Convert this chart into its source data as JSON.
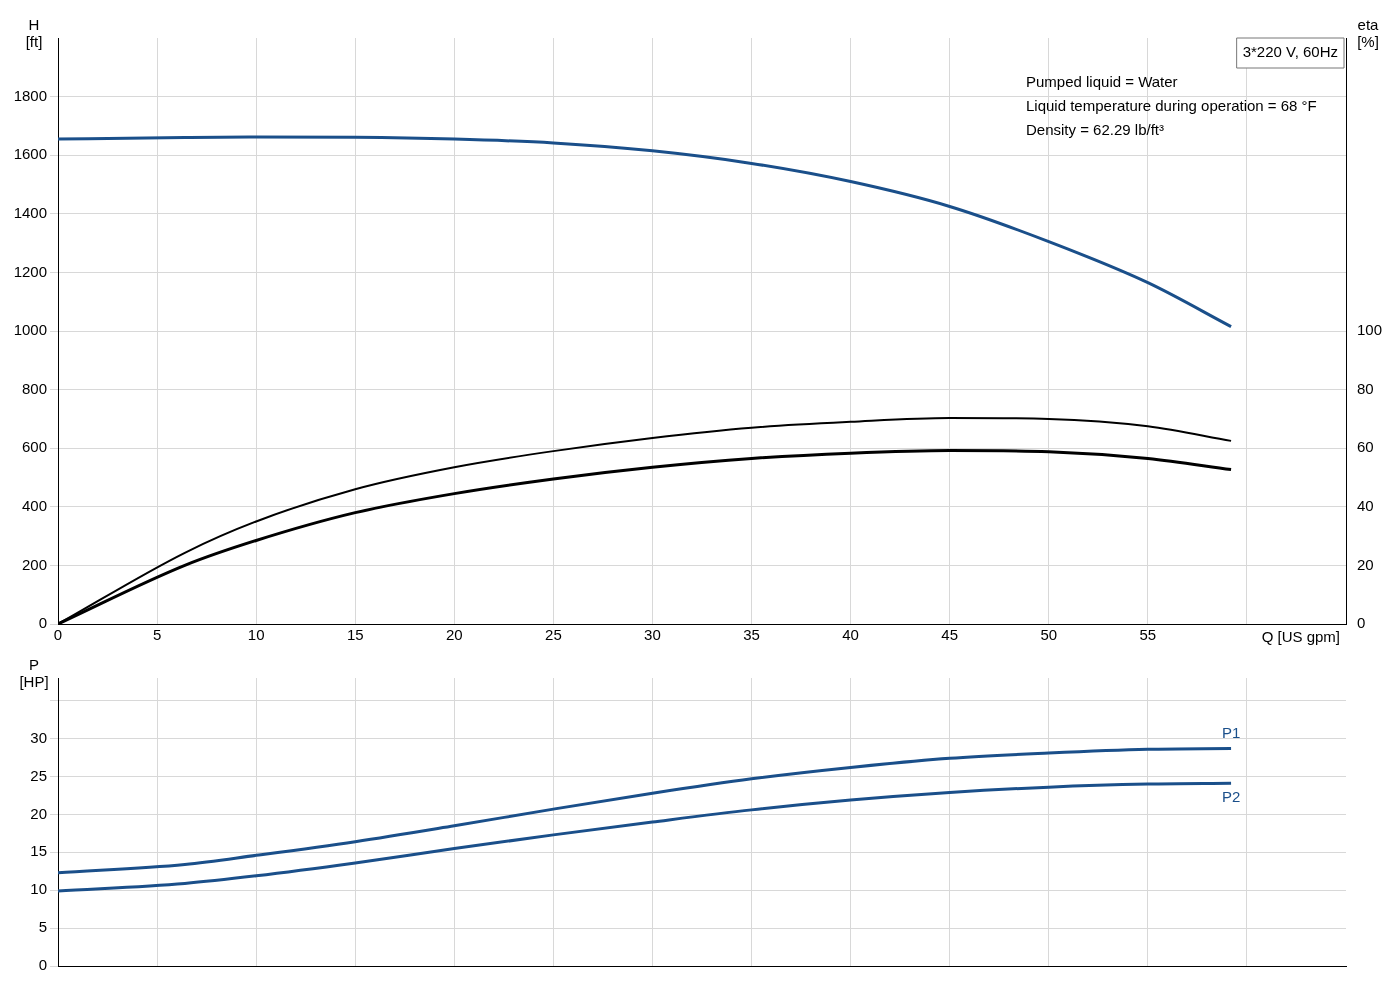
{
  "chart_data": [
    {
      "type": "line",
      "title": "3*220 V, 60Hz",
      "xlabel": "Q [US gpm]",
      "ylabel": "H [ft]",
      "y2label": "eta [%]",
      "annotations": [
        "Pumped liquid = Water",
        "Liquid temperature during operation = 68 °F",
        "Density = 62.29 lb/ft³"
      ],
      "x": [
        0,
        6.4,
        10,
        15,
        20,
        25,
        30,
        35,
        40,
        45,
        50,
        55,
        59.2
      ],
      "series": [
        {
          "color": "#1a4f8a",
          "values": [
            1655,
            1660,
            1662,
            1661,
            1655,
            1642,
            1615,
            1572,
            1510,
            1425,
            1305,
            1165,
            1015
          ]
        },
        {
          "color": "#000000",
          "axis": "y2",
          "values": [
            0,
            24.3,
            35,
            46,
            53.5,
            59,
            63.5,
            67,
            69,
            70.3,
            70,
            67.5,
            62.5
          ]
        },
        {
          "color": "#000000",
          "axis": "y2",
          "values": [
            0,
            20,
            28.5,
            38,
            44.5,
            49.5,
            53.5,
            56.5,
            58.3,
            59.2,
            58.8,
            56.5,
            52.7
          ]
        }
      ],
      "xlim": [
        0,
        65
      ],
      "xticks": [
        0,
        5,
        10,
        15,
        20,
        25,
        30,
        35,
        40,
        45,
        50,
        55,
        {
          "value": 60,
          "label": null
        }
      ],
      "ylim": [
        0,
        2000
      ],
      "yticks": [
        0,
        200,
        400,
        600,
        800,
        1000,
        1200,
        1400,
        1600,
        1800
      ],
      "y2lim": [
        0,
        200
      ],
      "y2ticks": [
        0,
        20,
        40,
        60,
        80,
        100
      ],
      "grid": true,
      "legend": false
    },
    {
      "type": "line",
      "ylabel": "P [HP]",
      "x": [
        0,
        6.4,
        10,
        15,
        20,
        25,
        30,
        35,
        40,
        45,
        50,
        55,
        59.2
      ],
      "series": [
        {
          "name": "P1",
          "color": "#1a4f8a",
          "values": [
            12.3,
            13.4,
            14.6,
            16.4,
            18.5,
            20.7,
            22.8,
            24.7,
            26.2,
            27.4,
            28.1,
            28.6,
            28.7
          ]
        },
        {
          "name": "P2",
          "color": "#1a4f8a",
          "values": [
            9.9,
            10.9,
            11.9,
            13.6,
            15.5,
            17.3,
            19,
            20.6,
            21.9,
            22.9,
            23.6,
            24,
            24.1
          ]
        }
      ],
      "xlim": [
        0,
        65
      ],
      "xticks": [
        0,
        5,
        10,
        15,
        20,
        25,
        30,
        35,
        40,
        45,
        50,
        55,
        60
      ],
      "ylim": [
        0,
        38
      ],
      "yticks": [
        0,
        5,
        10,
        15,
        20,
        25,
        30,
        {
          "value": 35,
          "label": null
        }
      ],
      "grid": true,
      "legend": false,
      "tick_labels": "y"
    }
  ]
}
